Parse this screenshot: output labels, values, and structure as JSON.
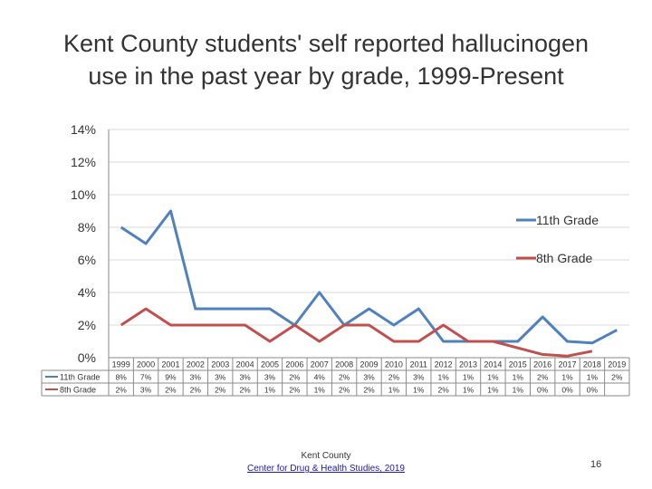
{
  "title_line1": "Kent County students' self reported hallucinogen",
  "title_line2": "use in the past year by grade, 1999-Present",
  "footer": {
    "org": "Kent County",
    "link_text": "Center for Drug & Health Studies, 2019"
  },
  "page_number": "16",
  "chart_data": {
    "type": "line",
    "title": "Kent County students' self reported hallucinogen use in the past year by grade, 1999-Present",
    "categories": [
      "1999",
      "2000",
      "2001",
      "2002",
      "2003",
      "2004",
      "2005",
      "2006",
      "2007",
      "2008",
      "2009",
      "2010",
      "2011",
      "2012",
      "2013",
      "2014",
      "2015",
      "2016",
      "2017",
      "2018",
      "2019"
    ],
    "ylim": [
      0,
      14
    ],
    "yticks": [
      "0%",
      "2%",
      "4%",
      "6%",
      "8%",
      "10%",
      "12%",
      "14%"
    ],
    "grid": true,
    "legend_position": "right",
    "series": [
      {
        "name": "11th Grade",
        "color": "#4f81bd",
        "values": [
          8,
          7,
          9,
          3,
          3,
          3,
          3,
          2,
          4,
          2,
          3,
          2,
          3,
          1,
          1,
          1,
          1,
          2.5,
          1,
          0.9,
          1.7
        ],
        "table_labels": [
          "8%",
          "7%",
          "9%",
          "3%",
          "3%",
          "3%",
          "3%",
          "2%",
          "4%",
          "2%",
          "3%",
          "2%",
          "3%",
          "1%",
          "1%",
          "1%",
          "1%",
          "2%",
          "1%",
          "1%",
          "2%"
        ]
      },
      {
        "name": "8th Grade",
        "color": "#c0504d",
        "values": [
          2,
          3,
          2,
          2,
          2,
          2,
          1,
          2,
          1,
          2,
          2,
          1,
          1,
          2,
          1,
          1,
          0.6,
          0.2,
          0.1,
          0.4,
          null
        ],
        "table_labels": [
          "2%",
          "3%",
          "2%",
          "2%",
          "2%",
          "2%",
          "1%",
          "2%",
          "1%",
          "2%",
          "2%",
          "1%",
          "1%",
          "2%",
          "1%",
          "1%",
          "1%",
          "0%",
          "0%",
          "0%",
          ""
        ]
      }
    ]
  }
}
